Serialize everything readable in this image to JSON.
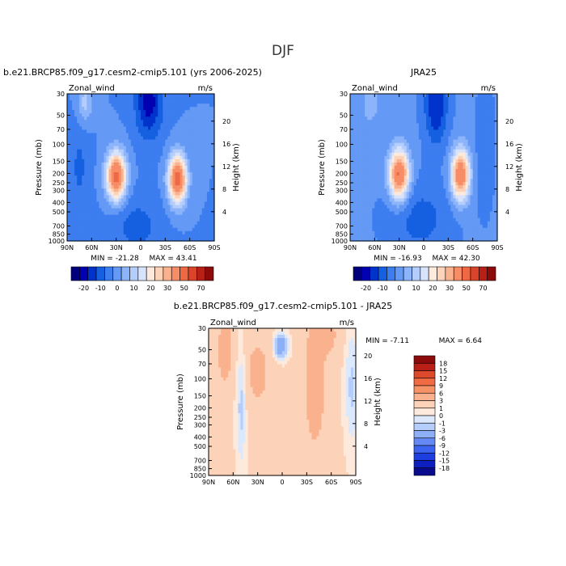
{
  "figure": {
    "title": "DJF"
  },
  "palette_abs": [
    "#00007f",
    "#0000b2",
    "#0033cc",
    "#1460e0",
    "#3c7df0",
    "#6499f5",
    "#8cb4fa",
    "#b4cdfc",
    "#d7e3fb",
    "#fdeadc",
    "#fcd2b8",
    "#fab28e",
    "#f78d66",
    "#ef6844",
    "#d9442b",
    "#b81f17",
    "#8c0a0a"
  ],
  "palette_diff": [
    "#0a0a8c",
    "#0d1fbe",
    "#1e3fe0",
    "#3c64f0",
    "#6489f5",
    "#8caff8",
    "#b4cdfb",
    "#dce8fc",
    "#fdeadc",
    "#fcd2b8",
    "#fab28e",
    "#f79266",
    "#f06a44",
    "#dc4a2b",
    "#b81f17",
    "#8c0a0a"
  ],
  "chart_data": [
    {
      "type": "contour",
      "id": "model",
      "title": "b.e21.BRCP85.f09_g17.cesm2-cmip5.101 (yrs 2006-2025)",
      "variable": "Zonal_wind",
      "units": "m/s",
      "ylabel": "Pressure (mb)",
      "ylabel_right": "Height (km)",
      "xticks": [
        "90N",
        "60N",
        "30N",
        "0",
        "30S",
        "60S",
        "90S"
      ],
      "yticks": [
        "30",
        "50",
        "70",
        "100",
        "150",
        "200",
        "250",
        "300",
        "400",
        "500",
        "700",
        "850",
        "1000"
      ],
      "height_ticks": [
        "20",
        "16",
        "12",
        "8",
        "4"
      ],
      "min_label": "MIN = -21.28",
      "max_label": "MAX =  43.41",
      "min": -21.28,
      "max": 43.41,
      "lat_range": [
        90,
        -90
      ],
      "pressure_range": [
        30,
        1000
      ],
      "colorbar": {
        "tick_labels": [
          "-20",
          "-10",
          "0",
          "10",
          "20",
          "30",
          "50",
          "70"
        ],
        "levels": [
          -25,
          -20,
          -15,
          -10,
          -5,
          0,
          5,
          10,
          15,
          20,
          25,
          30,
          40,
          50,
          60,
          70
        ]
      }
    },
    {
      "type": "contour",
      "id": "obs",
      "title": "JRA25",
      "variable": "Zonal_wind",
      "units": "m/s",
      "ylabel": "Pressure (mb)",
      "ylabel_right": "Height (km)",
      "xticks": [
        "90N",
        "60N",
        "30N",
        "0",
        "30S",
        "60S",
        "90S"
      ],
      "yticks": [
        "30",
        "50",
        "70",
        "100",
        "150",
        "200",
        "250",
        "300",
        "400",
        "500",
        "700",
        "850",
        "1000"
      ],
      "height_ticks": [
        "20",
        "16",
        "12",
        "8",
        "4"
      ],
      "min_label": "MIN = -16.93",
      "max_label": "MAX =  42.30",
      "min": -16.93,
      "max": 42.3,
      "lat_range": [
        90,
        -90
      ],
      "pressure_range": [
        30,
        1000
      ],
      "colorbar": {
        "tick_labels": [
          "-20",
          "-10",
          "0",
          "10",
          "20",
          "30",
          "50",
          "70"
        ],
        "levels": [
          -25,
          -20,
          -15,
          -10,
          -5,
          0,
          5,
          10,
          15,
          20,
          25,
          30,
          40,
          50,
          60,
          70
        ]
      }
    },
    {
      "type": "contour",
      "id": "diff",
      "title": "b.e21.BRCP85.f09_g17.cesm2-cmip5.101 - JRA25",
      "variable": "Zonal_wind",
      "units": "m/s",
      "ylabel": "Pressure (mb)",
      "ylabel_right": "Height (km)",
      "xticks": [
        "90N",
        "60N",
        "30N",
        "0",
        "30S",
        "60S",
        "90S"
      ],
      "yticks": [
        "30",
        "50",
        "70",
        "100",
        "150",
        "200",
        "250",
        "300",
        "400",
        "500",
        "700",
        "850",
        "1000"
      ],
      "height_ticks": [
        "20",
        "16",
        "12",
        "8",
        "4"
      ],
      "min_label": "MIN =  -7.11",
      "max_label": "MAX =   6.64",
      "min": -7.11,
      "max": 6.64,
      "lat_range": [
        90,
        -90
      ],
      "pressure_range": [
        30,
        1000
      ],
      "colorbar": {
        "tick_labels": [
          "18",
          "15",
          "12",
          "9",
          "6",
          "3",
          "1",
          "0",
          "-1",
          "-3",
          "-6",
          "-9",
          "-12",
          "-15",
          "-18"
        ],
        "levels": [
          -18,
          -15,
          -12,
          -9,
          -6,
          -3,
          -1,
          0,
          1,
          3,
          6,
          9,
          12,
          15,
          18
        ]
      }
    }
  ]
}
